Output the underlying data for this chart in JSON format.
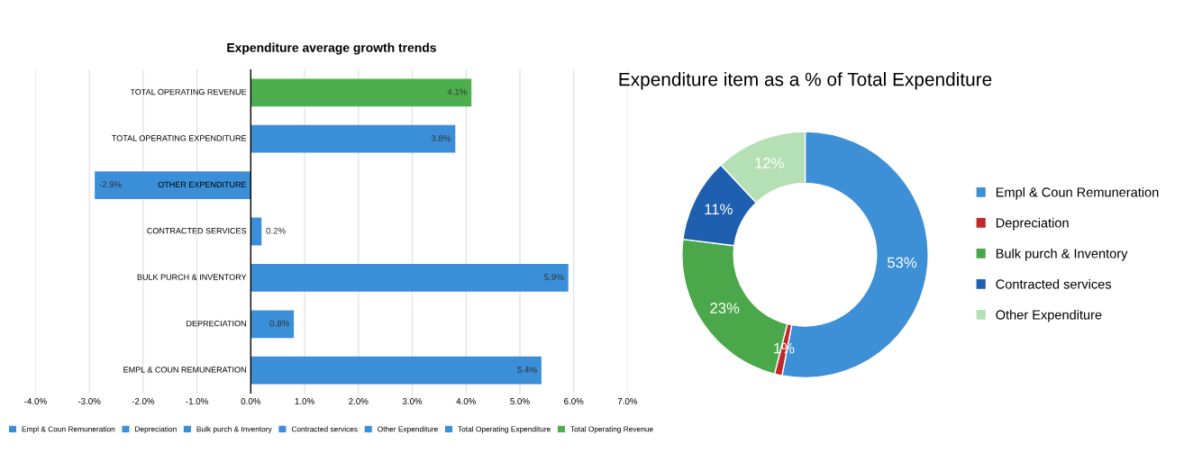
{
  "chart_data": [
    {
      "type": "bar",
      "orientation": "horizontal",
      "title": "Expenditure average growth trends",
      "categories": [
        "TOTAL OPERATING REVENUE",
        "TOTAL OPERATING EXPENDITURE",
        "OTHER EXPENDITURE",
        "CONTRACTED SERVICES",
        "BULK PURCH & INVENTORY",
        "DEPRECIATION",
        "EMPL & COUN REMUNERATION"
      ],
      "series": [
        {
          "name": "Empl & Coun Remuneration",
          "color": "#3a8fd8",
          "values": [
            null,
            null,
            null,
            null,
            null,
            null,
            5.4
          ],
          "value_labels": [
            null,
            null,
            null,
            null,
            null,
            null,
            "5.4%"
          ]
        },
        {
          "name": "Depreciation",
          "color": "#3a8fd8",
          "values": [
            null,
            null,
            null,
            null,
            null,
            0.8,
            null
          ],
          "value_labels": [
            null,
            null,
            null,
            null,
            null,
            "0.8%",
            null
          ]
        },
        {
          "name": "Bulk purch & Inventory",
          "color": "#3a8fd8",
          "values": [
            null,
            null,
            null,
            null,
            5.9,
            null,
            null
          ],
          "value_labels": [
            null,
            null,
            null,
            null,
            "5.9%",
            null,
            null
          ]
        },
        {
          "name": "Contracted services",
          "color": "#3a8fd8",
          "values": [
            null,
            null,
            null,
            0.2,
            null,
            null,
            null
          ],
          "value_labels": [
            null,
            null,
            null,
            "0.2%",
            null,
            null,
            null
          ]
        },
        {
          "name": "Other Expenditure",
          "color": "#3a8fd8",
          "values": [
            null,
            null,
            -2.9,
            null,
            null,
            null,
            null
          ],
          "value_labels": [
            null,
            null,
            "-2.9%",
            null,
            null,
            null,
            null
          ]
        },
        {
          "name": "Total Operating Expenditure",
          "color": "#3a8fd8",
          "values": [
            null,
            3.8,
            null,
            null,
            null,
            null,
            null
          ],
          "value_labels": [
            null,
            "3.8%",
            null,
            null,
            null,
            null,
            null
          ]
        },
        {
          "name": "Total Operating Revenue",
          "color": "#4cae4c",
          "values": [
            4.1,
            null,
            null,
            null,
            null,
            null,
            null
          ],
          "value_labels": [
            "4.1%",
            null,
            null,
            null,
            null,
            null,
            null
          ]
        }
      ],
      "xlim": [
        -4.0,
        7.0
      ],
      "xticks": [
        {
          "value": -4,
          "label": "-4.0%"
        },
        {
          "value": -3,
          "label": "-3.0%"
        },
        {
          "value": -2,
          "label": "-2.0%"
        },
        {
          "value": -1,
          "label": "-1.0%"
        },
        {
          "value": 0,
          "label": "0.0%"
        },
        {
          "value": 1,
          "label": "1.0%"
        },
        {
          "value": 2,
          "label": "2.0%"
        },
        {
          "value": 3,
          "label": "3.0%"
        },
        {
          "value": 4,
          "label": "4.0%"
        },
        {
          "value": 5,
          "label": "5.0%"
        },
        {
          "value": 6,
          "label": "6.0%"
        },
        {
          "value": 7,
          "label": "7.0%"
        }
      ],
      "grid": "x",
      "legend": "bottom"
    },
    {
      "type": "donut",
      "title": "Expenditure item as a % of Total Expenditure",
      "categories": [
        "Empl & Coun Remuneration",
        "Depreciation",
        "Bulk purch & Inventory",
        "Contracted services",
        "Other Expenditure"
      ],
      "values": [
        53,
        1,
        23,
        11,
        12
      ],
      "value_labels": [
        "53%",
        "1%",
        "23%",
        "11%",
        "12%"
      ],
      "colors": [
        "#3d8fd6",
        "#c0282b",
        "#4aa84a",
        "#1f5fb0",
        "#b5dfb5"
      ],
      "legend": "right"
    }
  ]
}
